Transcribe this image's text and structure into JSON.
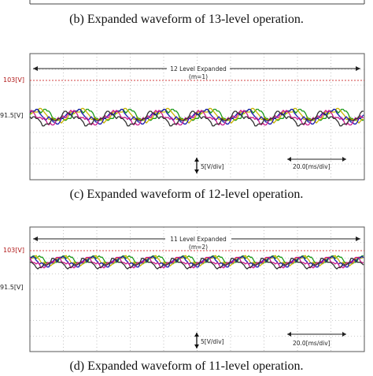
{
  "captions": {
    "b": "(b) Expanded waveform of 13-level operation.",
    "c": "(c) Expanded waveform of 12-level operation.",
    "d": "(d) Expanded waveform of 11-level operation."
  },
  "panels": {
    "c": {
      "title": "12 Level Expanded",
      "subtitle": "(m=1)",
      "ref_high": "103[V]",
      "ref_mid": "91.5[V]",
      "vscale": "5[V/div]",
      "tscale": "20.0[ms/div]"
    },
    "d": {
      "title": "11 Level Expanded",
      "subtitle": "(m=2)",
      "ref_high": "103[V]",
      "ref_mid": "91.5[V]",
      "vscale": "5[V/div]",
      "tscale": "20.0[ms/div]"
    }
  },
  "colors": {
    "grid": "#9a9a9a",
    "ref_line": "#d04040",
    "ref_label": "#b01818",
    "traces": [
      "#1a9a1a",
      "#c8b400",
      "#1a1ab0",
      "#cc1a8a",
      "#333333"
    ]
  }
}
